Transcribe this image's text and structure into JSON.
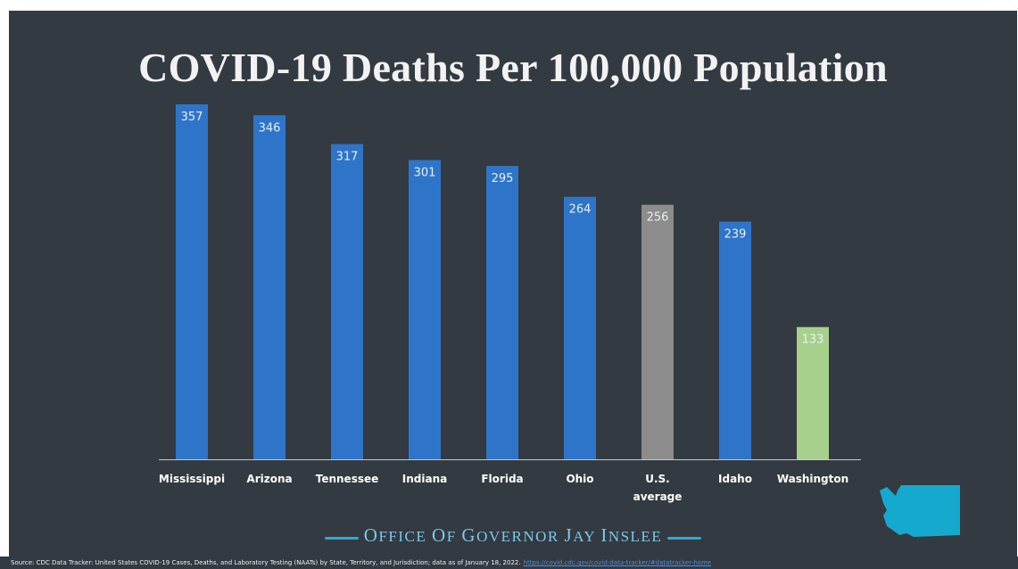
{
  "title": "COVID-19 Deaths Per 100,000 Population",
  "footer": {
    "office": "Office of Governor Jay Inslee",
    "source": "Source: CDC Data Tracker: United States COVID-19 Cases, Deaths, and Laboratory Testing (NAATs) by State, Territory, and Jurisdiction; data as of January 18, 2022.",
    "source_link": "https://covid.cdc.gov/covid-data-tracker/#datatracker-home"
  },
  "icons": {
    "map": "washington-state-map-icon"
  },
  "colors": {
    "background": "#333a42",
    "bar": "#2e75c9",
    "average": "#8c8c8c",
    "highlight": "#a8d08d",
    "title": "#f2f2f2"
  },
  "chart_data": {
    "type": "bar",
    "title": "COVID-19 Deaths Per 100,000 Population",
    "categories": [
      "Mississippi",
      "Arizona",
      "Tennessee",
      "Indiana",
      "Florida",
      "Ohio",
      "U.S. average",
      "Idaho",
      "Washington"
    ],
    "values": [
      357,
      346,
      317,
      301,
      295,
      264,
      256,
      239,
      133
    ],
    "bar_colors": [
      "#2e75c9",
      "#2e75c9",
      "#2e75c9",
      "#2e75c9",
      "#2e75c9",
      "#2e75c9",
      "#8c8c8c",
      "#2e75c9",
      "#a8d08d"
    ],
    "data_labels": [
      "357",
      "346",
      "317",
      "301",
      "295",
      "264",
      "256",
      "239",
      "133"
    ],
    "ylim": [
      0,
      357
    ],
    "grid": false,
    "legend": "none"
  }
}
